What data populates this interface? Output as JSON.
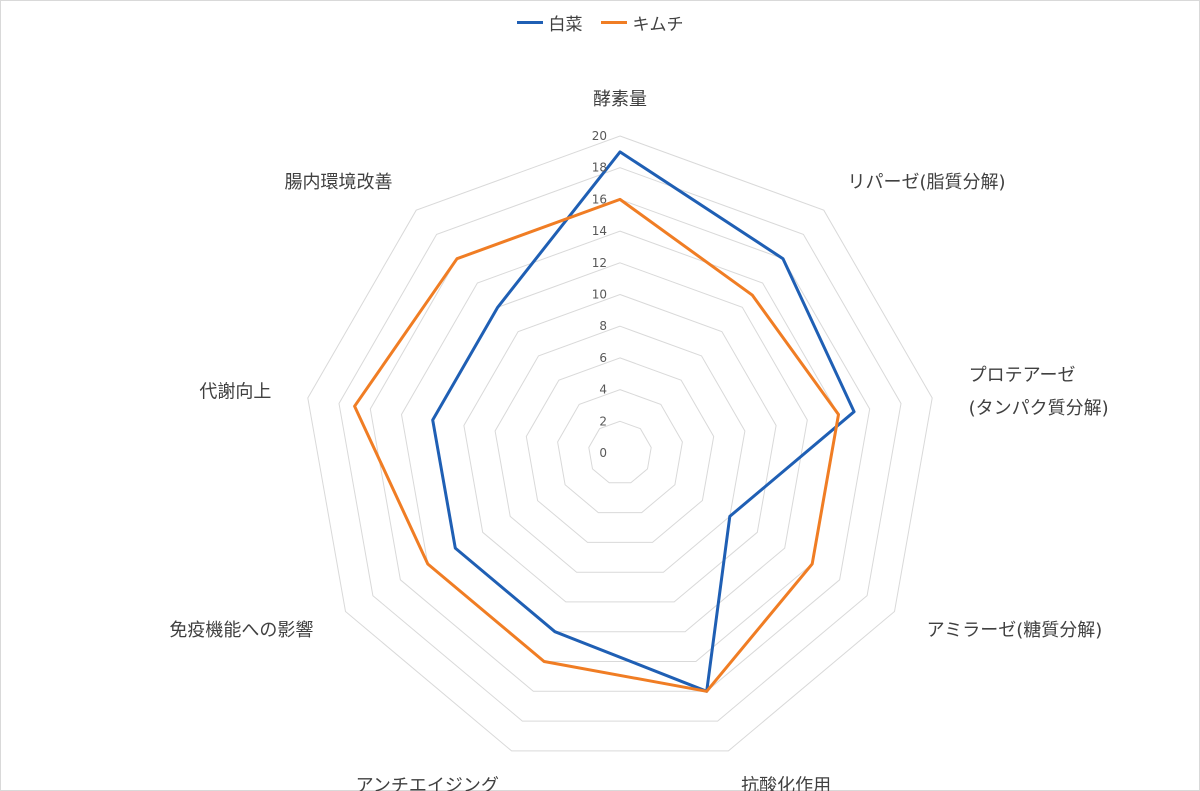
{
  "chart_data": {
    "type": "radar",
    "title": "",
    "categories": [
      [
        "酵素量"
      ],
      [
        "リパーゼ(脂質分解)"
      ],
      [
        "プロテアーゼ",
        "(タンパク質分解)"
      ],
      [
        "アミラーゼ(糖質分解)"
      ],
      [
        "抗酸化作用"
      ],
      [
        "アンチエイジング"
      ],
      [
        "免疫機能への影響"
      ],
      [
        "代謝向上"
      ],
      [
        "腸内環境改善"
      ]
    ],
    "series": [
      {
        "name": "白菜",
        "color": "#1f5fb4",
        "values": [
          19,
          16,
          15,
          8,
          16,
          12,
          12,
          12,
          12
        ]
      },
      {
        "name": "キムチ",
        "color": "#f07d24",
        "values": [
          16,
          13,
          14,
          14,
          16,
          14,
          14,
          17,
          16
        ]
      }
    ],
    "r_range": [
      0,
      20
    ],
    "ticks": [
      "0",
      "2",
      "4",
      "6",
      "8",
      "10",
      "12",
      "14",
      "16",
      "18",
      "20"
    ],
    "grid": true,
    "legend_position": "top"
  }
}
